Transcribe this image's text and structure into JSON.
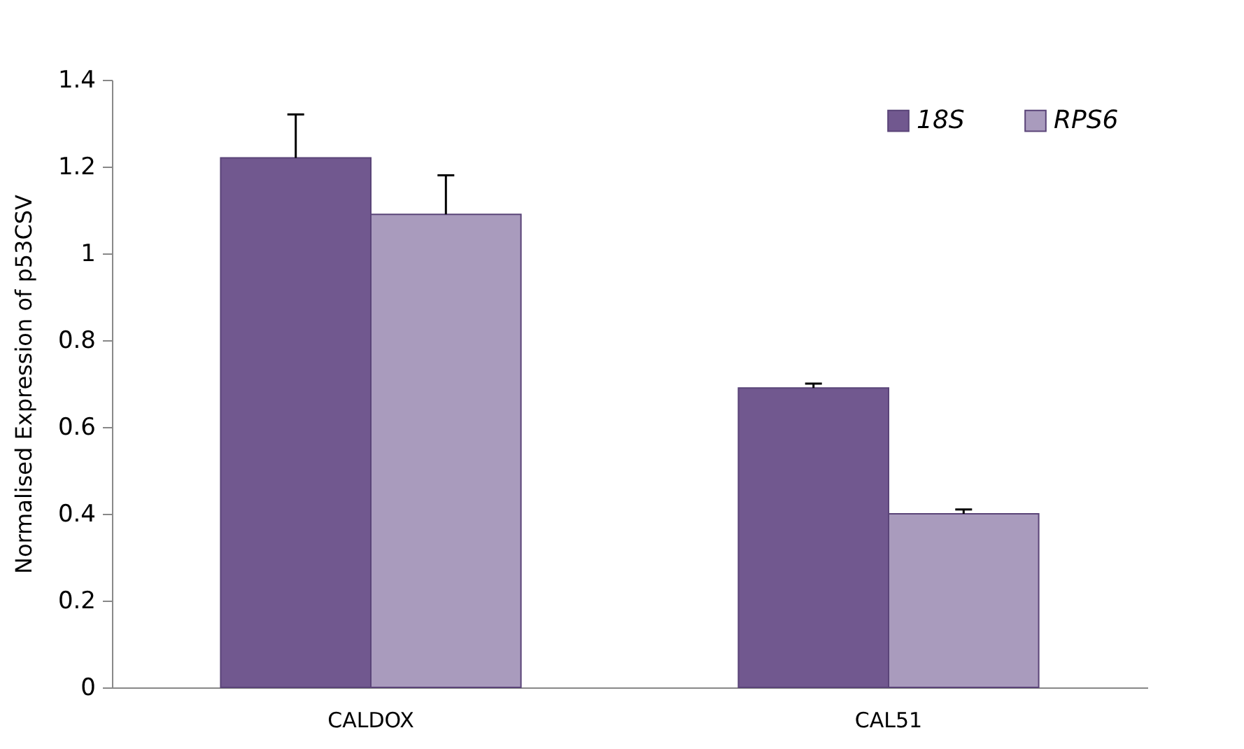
{
  "chart_data": {
    "type": "bar",
    "ylabel": "Normalised Expression of p53CSV",
    "categories": [
      "CALDOX",
      "CAL51"
    ],
    "series": [
      {
        "name": "18S",
        "color": "#71588f",
        "values": [
          1.22,
          0.69
        ],
        "errors": [
          [
            1.22,
            1.32
          ],
          [
            0.69,
            0.7
          ]
        ]
      },
      {
        "name": "RPS6",
        "color": "#a99bbd",
        "values": [
          1.09,
          0.4
        ],
        "errors": [
          [
            1.09,
            1.18
          ],
          [
            0.4,
            0.41
          ]
        ]
      }
    ],
    "ylim": [
      0,
      1.4
    ],
    "yticks": [
      0,
      0.2,
      0.4,
      0.6,
      0.8,
      1,
      1.2,
      1.4
    ],
    "grid": false,
    "legend": "top right"
  }
}
